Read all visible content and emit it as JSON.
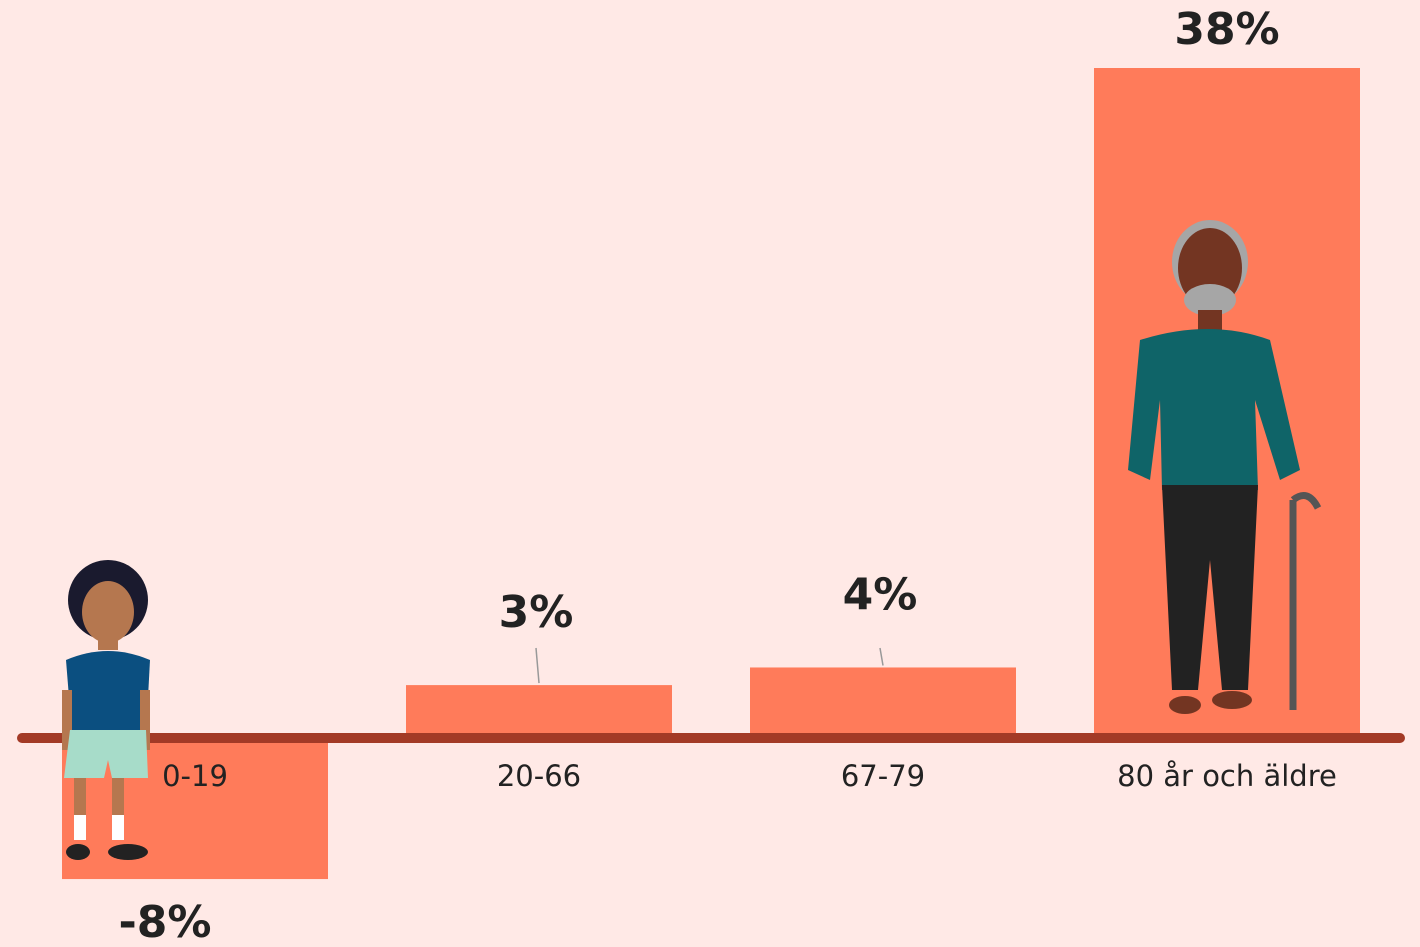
{
  "chart_data": {
    "type": "bar",
    "categories": [
      "0-19",
      "20-66",
      "67-79",
      "80 år och äldre"
    ],
    "values": [
      -8,
      3,
      4,
      38
    ],
    "value_labels": [
      "-8%",
      "3%",
      "4%",
      "38%"
    ],
    "color": "#ff7b5a"
  }
}
